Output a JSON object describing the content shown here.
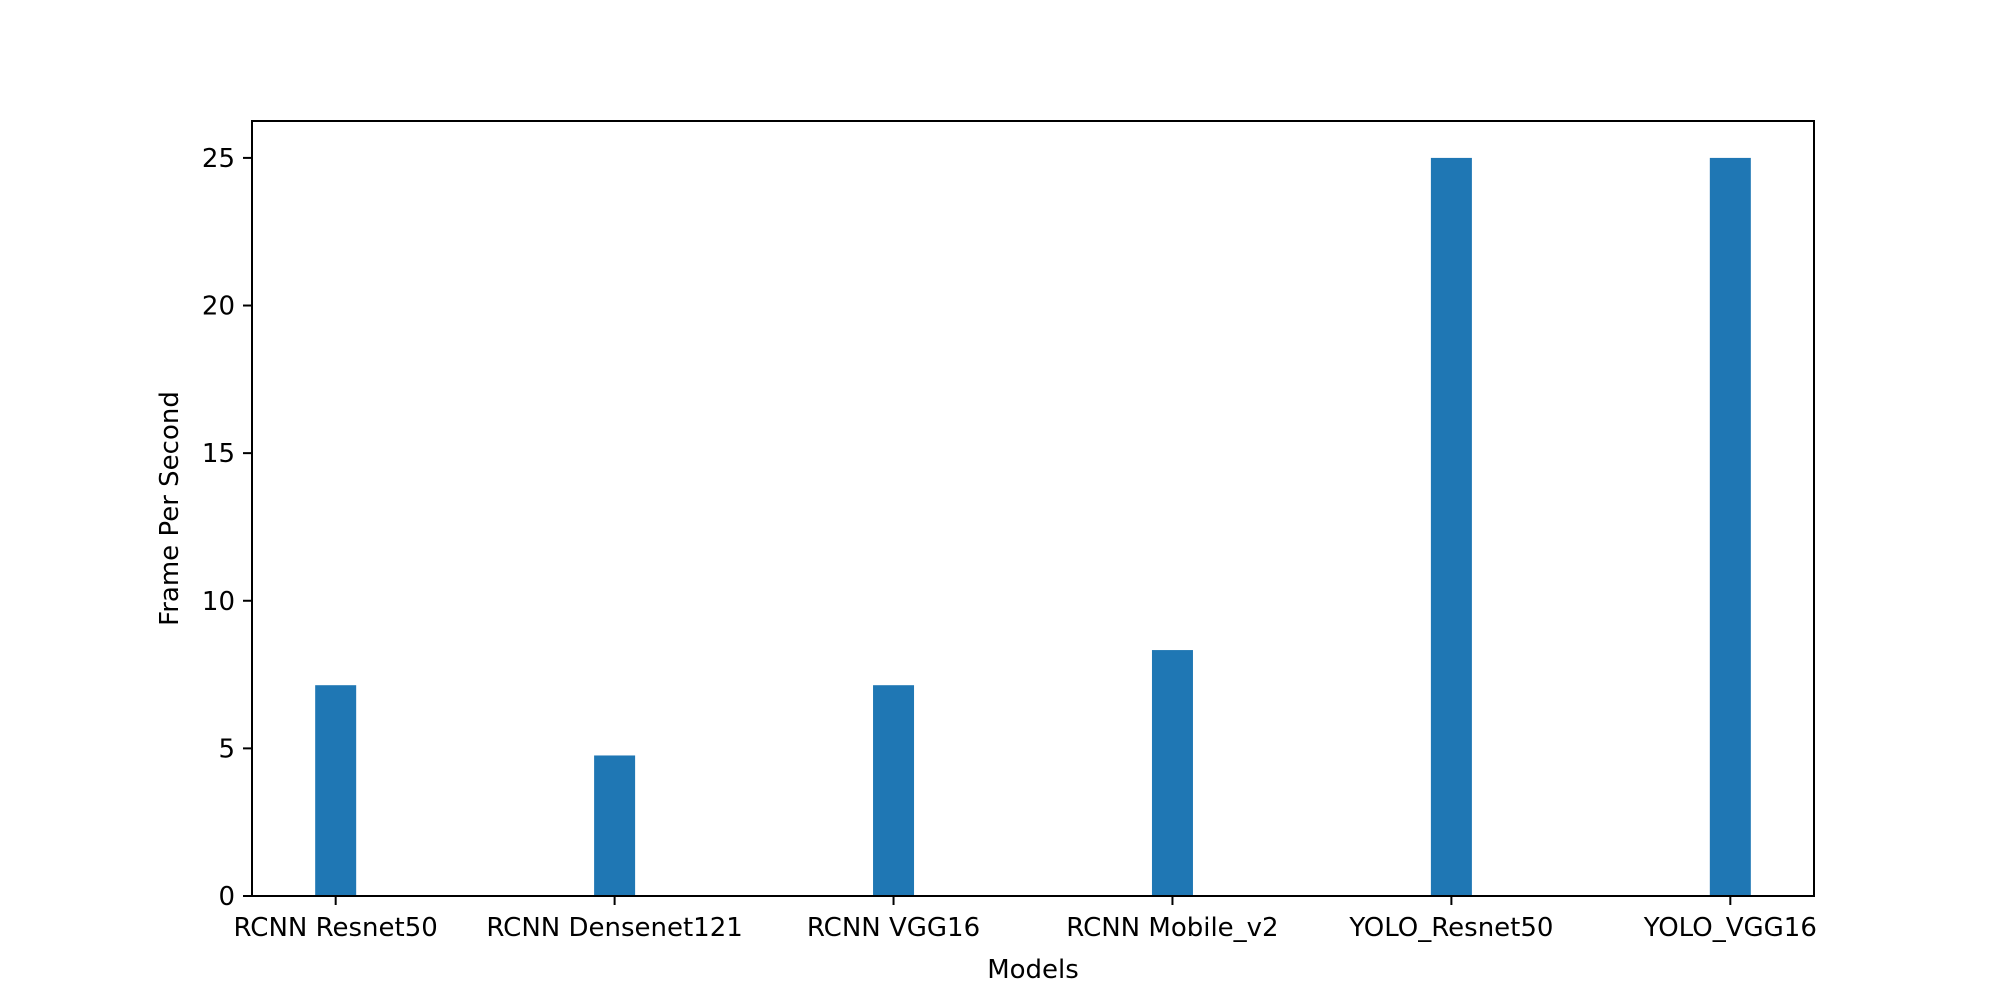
{
  "chart_data": {
    "type": "bar",
    "title": "",
    "xlabel": "Models",
    "ylabel": "Frame Per Second",
    "categories": [
      "RCNN Resnet50",
      "RCNN Densenet121",
      "RCNN VGG16",
      "RCNN Mobile_v2",
      "YOLO_Resnet50",
      "YOLO_VGG16"
    ],
    "values": [
      7.14,
      4.76,
      7.14,
      8.33,
      25,
      25
    ],
    "ylim": [
      0,
      26.25
    ],
    "yticks": [
      0,
      5,
      10,
      15,
      20,
      25
    ],
    "bar_color": "#1f77b4",
    "grid": false,
    "legend": "none"
  }
}
